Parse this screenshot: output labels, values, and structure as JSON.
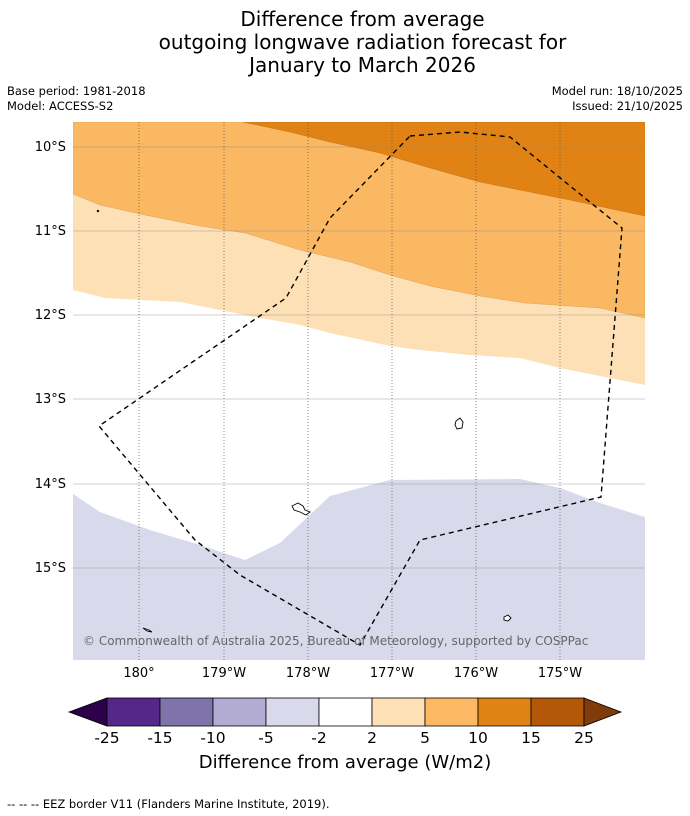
{
  "title": {
    "line1": "Difference from average",
    "line2": "outgoing longwave radiation forecast for",
    "line3": "January to March 2026"
  },
  "meta": {
    "base_period": "Base period: 1981-2018",
    "model": "Model: ACCESS-S2",
    "model_run": "Model run: 18/10/2025",
    "issued": "Issued: 21/10/2025"
  },
  "map": {
    "lat_ticks": [
      {
        "label": "10°S",
        "value": -10
      },
      {
        "label": "11°S",
        "value": -11
      },
      {
        "label": "12°S",
        "value": -12
      },
      {
        "label": "13°S",
        "value": -13
      },
      {
        "label": "14°S",
        "value": -14
      },
      {
        "label": "15°S",
        "value": -15
      }
    ],
    "lon_ticks": [
      {
        "label": "180°",
        "value": 180
      },
      {
        "label": "179°W",
        "value": -179
      },
      {
        "label": "178°W",
        "value": -178
      },
      {
        "label": "177°W",
        "value": -177
      },
      {
        "label": "176°W",
        "value": -176
      },
      {
        "label": "175°W",
        "value": -175
      }
    ],
    "copyright": "© Commonwealth of Australia 2025, Bureau of Meteorology, supported by COSPPac",
    "colors": {
      "band_2_5": "#fde0b6",
      "band_5_10": "#fbb862",
      "band_10_15": "#e08214",
      "band_neg5_neg2": "#d8daeb"
    }
  },
  "colorbar": {
    "title": "Difference from average (W/m2)",
    "ticks": [
      "-25",
      "-15",
      "-10",
      "-5",
      "-2",
      "2",
      "5",
      "10",
      "15",
      "25"
    ],
    "colors": [
      "#2d004b",
      "#542788",
      "#8073ac",
      "#b2abd2",
      "#d8daeb",
      "#ffffff",
      "#fee0b6",
      "#fdb863",
      "#e08214",
      "#b35806",
      "#7f3b08"
    ]
  },
  "footnote": "--  --  -- EEZ border V11 (Flanders Marine Institute, 2019)."
}
